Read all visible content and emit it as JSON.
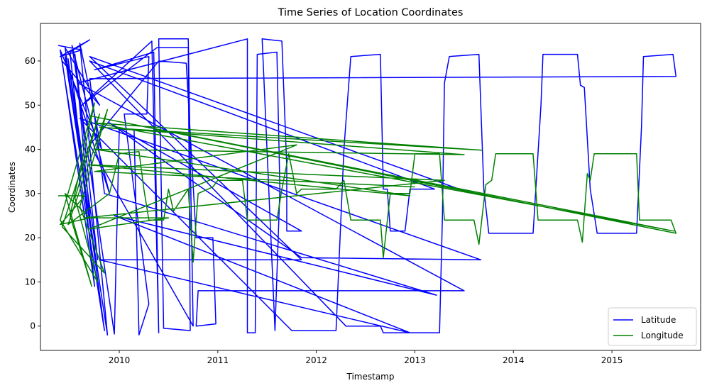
{
  "chart_data": {
    "type": "line",
    "title": "Time Series of Location Coordinates",
    "xlabel": "Timestamp",
    "ylabel": "Coordinates",
    "xlim": [
      2009.2,
      2015.9
    ],
    "ylim": [
      -5.5,
      68.5
    ],
    "x_ticks": [
      {
        "value": 2010,
        "label": "2010"
      },
      {
        "value": 2011,
        "label": "2011"
      },
      {
        "value": 2012,
        "label": "2012"
      },
      {
        "value": 2013,
        "label": "2013"
      },
      {
        "value": 2014,
        "label": "2014"
      },
      {
        "value": 2015,
        "label": "2015"
      }
    ],
    "y_ticks": [
      {
        "value": 0,
        "label": "0"
      },
      {
        "value": 10,
        "label": "10"
      },
      {
        "value": 20,
        "label": "20"
      },
      {
        "value": 30,
        "label": "30"
      },
      {
        "value": 40,
        "label": "40"
      },
      {
        "value": 50,
        "label": "50"
      },
      {
        "value": 60,
        "label": "60"
      }
    ],
    "grid": false,
    "legend": {
      "position": "lower-right"
    },
    "series": [
      {
        "name": "Latitude",
        "color": "#0000ff",
        "points": [
          [
            2009.38,
            63.5
          ],
          [
            2009.62,
            62.5
          ],
          [
            2009.4,
            61.0
          ],
          [
            2009.7,
            64.8
          ],
          [
            2009.5,
            62.0
          ],
          [
            2009.75,
            9.0
          ],
          [
            2009.42,
            60.0
          ],
          [
            2009.8,
            50.0
          ],
          [
            2009.45,
            63.0
          ],
          [
            2009.72,
            20.0
          ],
          [
            2009.55,
            61.5
          ],
          [
            2009.78,
            15.0
          ],
          [
            2009.48,
            60.5
          ],
          [
            2009.85,
            -1.0
          ],
          [
            2009.4,
            62.5
          ],
          [
            2009.82,
            40.0
          ],
          [
            2009.6,
            64.0
          ],
          [
            2009.88,
            -2.0
          ],
          [
            2009.45,
            61.0
          ],
          [
            2009.9,
            30.0
          ],
          [
            2009.52,
            63.5
          ],
          [
            2009.95,
            -1.8
          ],
          [
            2010.0,
            44.5
          ],
          [
            2010.15,
            44.5
          ],
          [
            2010.2,
            -2.0
          ],
          [
            2010.3,
            5.0
          ],
          [
            2010.05,
            48.0
          ],
          [
            2010.28,
            48.0
          ],
          [
            2010.3,
            61.0
          ],
          [
            2009.75,
            58.0
          ],
          [
            2010.35,
            62.0
          ],
          [
            2010.4,
            -1.5
          ],
          [
            2010.33,
            64.5
          ],
          [
            2009.62,
            50.0
          ],
          [
            2010.38,
            63.0
          ],
          [
            2010.7,
            63.0
          ],
          [
            2010.72,
            -1.0
          ],
          [
            2010.45,
            -0.5
          ],
          [
            2010.4,
            65.0
          ],
          [
            2010.7,
            65.0
          ],
          [
            2010.75,
            0.0
          ],
          [
            2009.7,
            41.0
          ],
          [
            2010.4,
            60.0
          ],
          [
            2010.68,
            59.5
          ],
          [
            2010.78,
            20.0
          ],
          [
            2010.95,
            20.0
          ],
          [
            2010.98,
            0.5
          ],
          [
            2010.78,
            0.0
          ],
          [
            2010.8,
            8.0
          ],
          [
            2013.5,
            8.0
          ],
          [
            2009.58,
            55.0
          ],
          [
            2011.3,
            65.0
          ],
          [
            2011.3,
            -1.5
          ],
          [
            2011.38,
            -1.5
          ],
          [
            2011.4,
            61.5
          ],
          [
            2011.6,
            62.0
          ],
          [
            2011.63,
            31.0
          ],
          [
            2011.58,
            -1.0
          ],
          [
            2011.45,
            65.0
          ],
          [
            2011.65,
            64.5
          ],
          [
            2011.7,
            36.0
          ],
          [
            2011.7,
            21.5
          ],
          [
            2011.85,
            21.5
          ],
          [
            2009.9,
            46.0
          ],
          [
            2011.85,
            15.5
          ],
          [
            2013.67,
            15.0
          ],
          [
            2009.6,
            47.0
          ],
          [
            2011.75,
            -1.0
          ],
          [
            2012.2,
            -1.0
          ],
          [
            2012.28,
            40.0
          ],
          [
            2012.35,
            61.0
          ],
          [
            2012.65,
            61.5
          ],
          [
            2012.68,
            31.0
          ],
          [
            2012.72,
            31.0
          ],
          [
            2012.75,
            21.5
          ],
          [
            2012.9,
            21.5
          ],
          [
            2012.95,
            31.0
          ],
          [
            2013.2,
            31.0
          ],
          [
            2009.7,
            60.0
          ],
          [
            2012.3,
            0.0
          ],
          [
            2012.65,
            0.0
          ],
          [
            2012.68,
            -1.5
          ],
          [
            2013.25,
            -1.5
          ],
          [
            2013.28,
            25.0
          ],
          [
            2013.3,
            55.0
          ],
          [
            2013.35,
            61.0
          ],
          [
            2013.65,
            61.5
          ],
          [
            2013.7,
            31.0
          ],
          [
            2013.75,
            21.0
          ],
          [
            2014.2,
            21.0
          ],
          [
            2014.28,
            50.0
          ],
          [
            2014.3,
            61.5
          ],
          [
            2014.65,
            61.5
          ],
          [
            2014.68,
            54.5
          ],
          [
            2014.72,
            54.0
          ],
          [
            2014.78,
            31.0
          ],
          [
            2014.85,
            21.0
          ],
          [
            2015.25,
            21.0
          ],
          [
            2015.3,
            45.0
          ],
          [
            2015.32,
            61.0
          ],
          [
            2015.62,
            61.5
          ],
          [
            2015.65,
            56.5
          ],
          [
            2009.7,
            56.0
          ],
          [
            2009.85,
            30.0
          ],
          [
            2013.22,
            7.0
          ],
          [
            2009.95,
            25.0
          ],
          [
            2012.95,
            -1.5
          ],
          [
            2009.8,
            15.0
          ],
          [
            2011.85,
            15.0
          ],
          [
            2009.7,
            61.0
          ],
          [
            2013.45,
            31.0
          ]
        ]
      },
      {
        "name": "Longitude",
        "color": "#008000",
        "points": [
          [
            2009.38,
            29.5
          ],
          [
            2009.65,
            29.5
          ],
          [
            2009.4,
            23.0
          ],
          [
            2009.7,
            24.5
          ],
          [
            2009.45,
            30.0
          ],
          [
            2009.72,
            9.0
          ],
          [
            2009.5,
            25.0
          ],
          [
            2009.75,
            50.5
          ],
          [
            2009.4,
            24.0
          ],
          [
            2009.78,
            10.0
          ],
          [
            2009.55,
            29.0
          ],
          [
            2009.8,
            48.0
          ],
          [
            2009.42,
            22.5
          ],
          [
            2009.85,
            12.0
          ],
          [
            2009.6,
            27.0
          ],
          [
            2009.88,
            49.0
          ],
          [
            2009.48,
            23.0
          ],
          [
            2009.9,
            30.0
          ],
          [
            2010.0,
            39.0
          ],
          [
            2010.2,
            39.5
          ],
          [
            2010.25,
            31.0
          ],
          [
            2010.3,
            24.0
          ],
          [
            2010.45,
            24.0
          ],
          [
            2010.5,
            31.0
          ],
          [
            2010.55,
            26.0
          ],
          [
            2010.7,
            31.0
          ],
          [
            2010.75,
            14.5
          ],
          [
            2010.8,
            30.0
          ],
          [
            2010.95,
            31.5
          ],
          [
            2011.0,
            33.0
          ],
          [
            2011.25,
            33.0
          ],
          [
            2011.3,
            24.0
          ],
          [
            2011.6,
            24.0
          ],
          [
            2011.65,
            31.0
          ],
          [
            2011.72,
            39.0
          ],
          [
            2011.8,
            30.0
          ],
          [
            2011.85,
            31.0
          ],
          [
            2012.2,
            31.0
          ],
          [
            2012.28,
            33.0
          ],
          [
            2012.35,
            24.0
          ],
          [
            2012.65,
            24.0
          ],
          [
            2012.68,
            15.5
          ],
          [
            2012.75,
            30.0
          ],
          [
            2012.95,
            30.0
          ],
          [
            2013.0,
            39.0
          ],
          [
            2013.25,
            39.0
          ],
          [
            2013.3,
            24.0
          ],
          [
            2013.6,
            24.0
          ],
          [
            2013.65,
            18.5
          ],
          [
            2013.72,
            32.0
          ],
          [
            2013.78,
            33.0
          ],
          [
            2013.82,
            39.0
          ],
          [
            2014.2,
            39.0
          ],
          [
            2014.25,
            24.0
          ],
          [
            2014.65,
            24.0
          ],
          [
            2014.7,
            19.0
          ],
          [
            2014.75,
            34.5
          ],
          [
            2014.78,
            33.0
          ],
          [
            2014.82,
            39.0
          ],
          [
            2015.25,
            39.0
          ],
          [
            2015.28,
            24.0
          ],
          [
            2015.6,
            24.0
          ],
          [
            2015.65,
            21.0
          ],
          [
            2009.72,
            47.5
          ],
          [
            2015.63,
            21.5
          ],
          [
            2009.75,
            46.0
          ],
          [
            2013.68,
            39.8
          ],
          [
            2009.8,
            45.0
          ],
          [
            2013.5,
            38.8
          ],
          [
            2009.75,
            40.0
          ],
          [
            2012.95,
            29.5
          ],
          [
            2009.7,
            36.5
          ],
          [
            2013.3,
            33.0
          ],
          [
            2009.65,
            24.5
          ],
          [
            2010.5,
            24.5
          ],
          [
            2009.7,
            22.0
          ],
          [
            2011.8,
            41.0
          ],
          [
            2009.75,
            35.0
          ],
          [
            2013.0,
            31.5
          ]
        ]
      }
    ]
  }
}
